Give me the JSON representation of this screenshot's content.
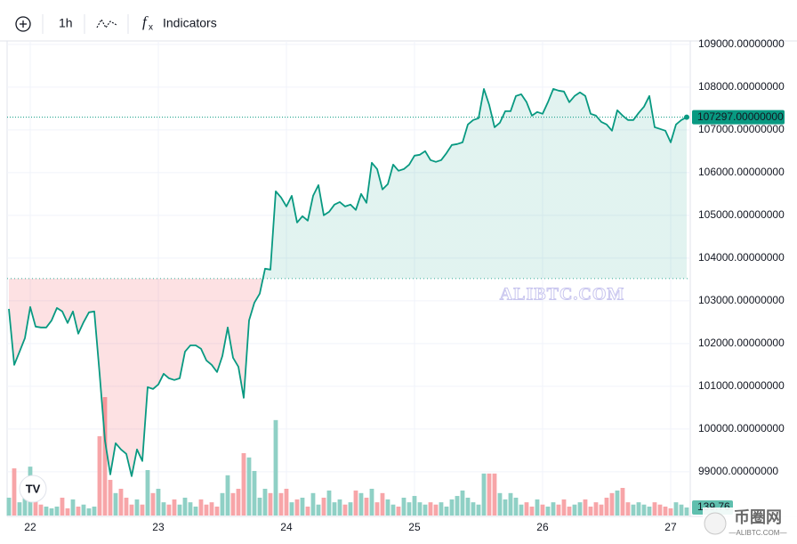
{
  "toolbar": {
    "interval": "1h",
    "indicators": "Indicators"
  },
  "watermark": "ALIBTC.COM",
  "logo": {
    "name": "币圈网",
    "site": "—ALIBTC.COM—"
  },
  "chart_data": {
    "type": "baseline",
    "values": [
      102812,
      101500,
      101812,
      102125,
      102854,
      102396,
      102375,
      102375,
      102541,
      102833,
      102750,
      102479,
      102750,
      102229,
      102500,
      102729,
      102750,
      101291,
      99729,
      98937,
      99667,
      99521,
      99417,
      98896,
      99521,
      99250,
      100979,
      100937,
      101042,
      101292,
      101187,
      101146,
      101187,
      101812,
      101958,
      101958,
      101875,
      101604,
      101500,
      101333,
      101708,
      102375,
      101667,
      101458,
      100729,
      102541,
      102958,
      103167,
      103750,
      103729,
      105562,
      105417,
      105208,
      105458,
      104833,
      104979,
      104875,
      105458,
      105708,
      105000,
      105083,
      105250,
      105312,
      105208,
      105250,
      105125,
      105500,
      105292,
      106229,
      106083,
      105604,
      105729,
      106187,
      106042,
      106083,
      106187,
      106396,
      106417,
      106500,
      106292,
      106250,
      106292,
      106458,
      106646,
      106667,
      106708,
      107125,
      107229,
      107271,
      107958,
      107583,
      107062,
      107167,
      107437,
      107437,
      107792,
      107833,
      107646,
      107333,
      107417,
      107375,
      107646,
      107958,
      107917,
      107896,
      107646,
      107792,
      107875,
      107792,
      107375,
      107333,
      107187,
      107125,
      106979,
      107458,
      107333,
      107229,
      107229,
      107396,
      107542,
      107792,
      107062,
      107021,
      106979,
      106708,
      107125,
      107229,
      107297
    ],
    "volumes": [
      310,
      820,
      230,
      430,
      850,
      390,
      190,
      155,
      125,
      155,
      310,
      125,
      280,
      155,
      190,
      125,
      155,
      1380,
      2060,
      620,
      390,
      465,
      310,
      190,
      280,
      190,
      790,
      390,
      465,
      230,
      190,
      280,
      190,
      310,
      230,
      155,
      280,
      190,
      230,
      155,
      390,
      700,
      390,
      465,
      1085,
      1010,
      775,
      310,
      465,
      390,
      1660,
      390,
      465,
      230,
      280,
      310,
      155,
      390,
      190,
      310,
      435,
      230,
      280,
      190,
      230,
      435,
      390,
      310,
      465,
      230,
      390,
      280,
      190,
      155,
      310,
      230,
      340,
      230,
      190,
      230,
      190,
      230,
      155,
      280,
      340,
      435,
      310,
      230,
      190,
      730,
      730,
      730,
      390,
      280,
      390,
      310,
      190,
      230,
      155,
      280,
      190,
      155,
      230,
      190,
      280,
      155,
      190,
      230,
      280,
      155,
      230,
      190,
      310,
      390,
      435,
      480,
      230,
      190,
      230,
      190,
      155,
      230,
      190,
      155,
      125,
      230,
      190,
      139.76
    ],
    "volume_label": "139.76",
    "baseline": 103520,
    "last_price": {
      "value": 107297,
      "label": "107297.00000000"
    },
    "up_color": "#089981",
    "down_color": "#f23645",
    "up_volume_color": "#8fd0c5",
    "down_volume_color": "#f7a5a8",
    "ylim": [
      97955,
      109080
    ],
    "yticks": [
      {
        "value": 99000,
        "label": "99000.00000000"
      },
      {
        "value": 100000,
        "label": "100000.00000000"
      },
      {
        "value": 101000,
        "label": "101000.00000000"
      },
      {
        "value": 102000,
        "label": "102000.00000000"
      },
      {
        "value": 103000,
        "label": "103000.00000000"
      },
      {
        "value": 104000,
        "label": "104000.00000000"
      },
      {
        "value": 105000,
        "label": "105000.00000000"
      },
      {
        "value": 106000,
        "label": "106000.00000000"
      },
      {
        "value": 107000,
        "label": "107000.00000000"
      },
      {
        "value": 108000,
        "label": "108000.00000000"
      },
      {
        "value": 109000,
        "label": "109000.00000000"
      }
    ],
    "xlim": [
      -0.33,
      127.67
    ],
    "xticks": [
      {
        "value": 4,
        "label": "22"
      },
      {
        "value": 28,
        "label": "23"
      },
      {
        "value": 52,
        "label": "24"
      },
      {
        "value": 76,
        "label": "25"
      },
      {
        "value": 100,
        "label": "26"
      },
      {
        "value": 124,
        "label": "27"
      }
    ],
    "grid": true
  }
}
